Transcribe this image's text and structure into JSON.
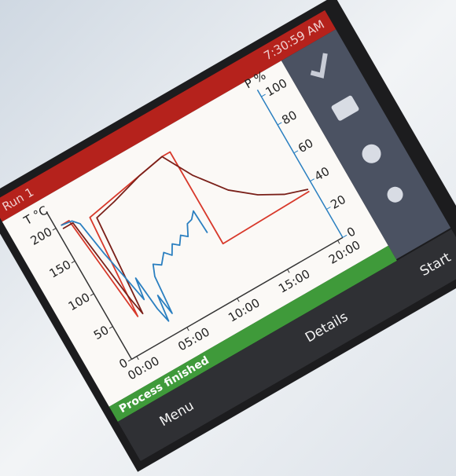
{
  "header": {
    "title": "Run 1",
    "time": "7:30:59 AM"
  },
  "chart_data": {
    "type": "line",
    "y_label": "T °C",
    "y2_label": "P %",
    "xlim": [
      -0.5,
      20.5
    ],
    "xticks": [
      {
        "value": 0,
        "label": "00:00"
      },
      {
        "value": 5,
        "label": "05:00"
      },
      {
        "value": 10,
        "label": "10:00"
      },
      {
        "value": 15,
        "label": "15:00"
      },
      {
        "value": 20,
        "label": "20:00"
      }
    ],
    "ylim": [
      0,
      215
    ],
    "yticks": [
      0,
      50,
      100,
      150,
      200
    ],
    "y2lim": [
      0,
      100
    ],
    "y2ticks": [
      0,
      20,
      40,
      60,
      80,
      100
    ],
    "series": [
      {
        "color": "#d8392b",
        "x": [
          0,
          0.8,
          1.8,
          2.5,
          10.5,
          11.3,
          11.3,
          20
        ],
        "values": [
          200,
          200,
          45,
          190,
          212,
          212,
          72,
          75
        ]
      },
      {
        "color": "#7a2019",
        "x": [
          0,
          1,
          2,
          2.3,
          3,
          5,
          8,
          10.5,
          12,
          14,
          16,
          18,
          20
        ],
        "values": [
          195,
          195,
          70,
          45,
          185,
          192,
          205,
          212,
          170,
          130,
          105,
          88,
          78
        ]
      },
      {
        "color": "#2a7fc0",
        "axis": "y2",
        "x": [
          0,
          1,
          1.5,
          2,
          2.5,
          3,
          3.3,
          3.6,
          3.9,
          4.2,
          4.5,
          4.8,
          5.2,
          5.8,
          6.5,
          7,
          7.5,
          8,
          8.5,
          9,
          9.5,
          10,
          10.5,
          10.6
        ],
        "values": [
          93,
          92,
          88,
          65,
          47,
          28,
          42,
          19,
          9,
          26,
          12,
          37,
          44,
          41,
          47,
          43,
          49,
          46,
          51,
          48,
          55,
          56,
          60,
          44
        ]
      }
    ]
  },
  "status": "Process finished",
  "buttons": [
    "Menu",
    "Details",
    "Start"
  ]
}
